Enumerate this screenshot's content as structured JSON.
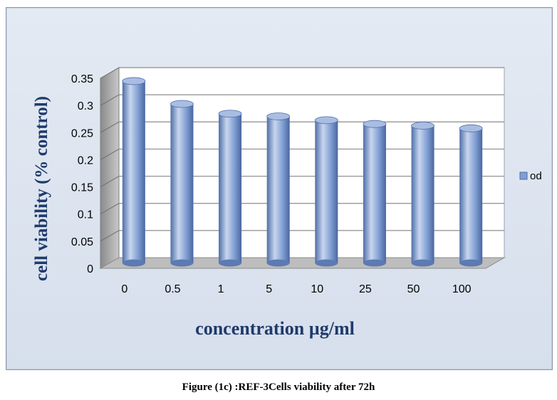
{
  "caption": "Figure (1c) :REF-3Cells viability after 72h",
  "chart_data": {
    "type": "bar",
    "categories": [
      "0",
      "0.5",
      "1",
      "5",
      "10",
      "25",
      "50",
      "100"
    ],
    "series": [
      {
        "name": "od",
        "values": [
          0.335,
          0.293,
          0.275,
          0.27,
          0.263,
          0.256,
          0.253,
          0.248
        ]
      }
    ],
    "xlabel": "concentration µg/ml",
    "ylabel": "cell viability (% control)",
    "ylim": [
      0,
      0.35
    ],
    "yticks": [
      "0",
      "0.05",
      "0.1",
      "0.15",
      "0.2",
      "0.25",
      "0.3",
      "0.35"
    ],
    "grid": true,
    "legend_position": "right",
    "colors": {
      "bar": "#7f9ed2",
      "bar_dark": "#4f6fa8",
      "bar_light": "#c8d6ee",
      "background": "#dde5f0",
      "axis_text": "#1f3a6b"
    }
  }
}
